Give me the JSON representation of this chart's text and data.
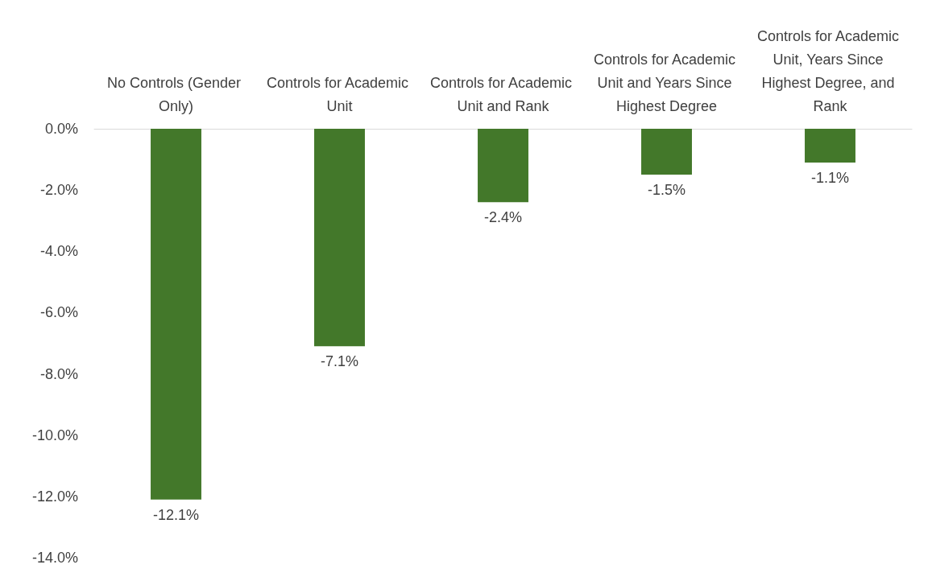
{
  "chart_data": {
    "type": "bar",
    "categories": [
      "No Controls (Gender Only)",
      "Controls for Academic Unit",
      "Controls for Academic Unit and Rank",
      "Controls for Academic Unit and Years Since Highest Degree",
      "Controls for Academic Unit, Years Since Highest Degree, and Rank"
    ],
    "values": [
      -12.1,
      -7.1,
      -2.4,
      -1.5,
      -1.1
    ],
    "value_labels": [
      "-12.1%",
      "-7.1%",
      "-2.4%",
      "-1.5%",
      "-1.1%"
    ],
    "color": "#43782a",
    "ylim": [
      -14,
      0
    ],
    "yticks": [
      {
        "value": 0,
        "label": "0.0%"
      },
      {
        "value": -2,
        "label": "-2.0%"
      },
      {
        "value": -4,
        "label": "-4.0%"
      },
      {
        "value": -6,
        "label": "-6.0%"
      },
      {
        "value": -8,
        "label": "-8.0%"
      },
      {
        "value": -10,
        "label": "-10.0%"
      },
      {
        "value": -12,
        "label": "-12.0%"
      },
      {
        "value": -14,
        "label": "-14.0%"
      }
    ],
    "grid": false
  }
}
